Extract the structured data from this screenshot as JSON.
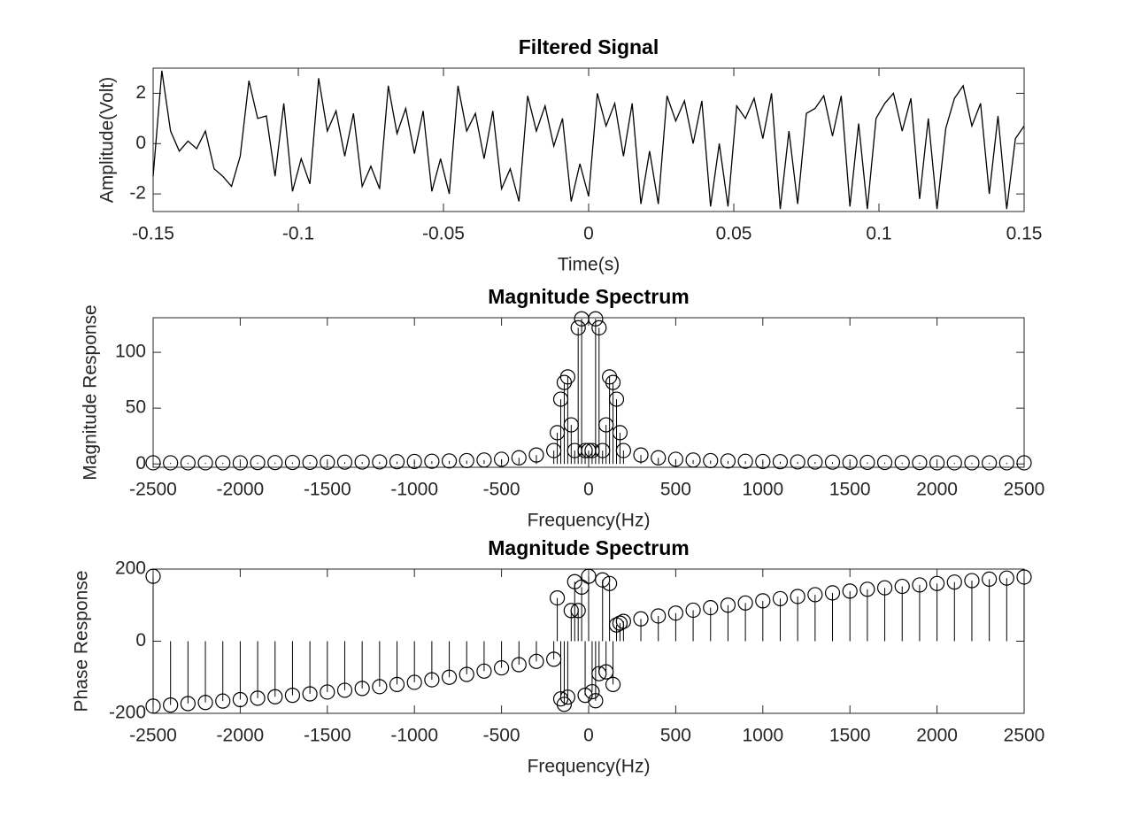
{
  "chart_data": [
    {
      "type": "line",
      "title": "Filtered Signal",
      "x_label": "Time(s)",
      "y_label": "Amplitude(Volt)",
      "color": "#000000",
      "x": [
        -0.15,
        -0.147,
        -0.144,
        -0.141,
        -0.138,
        -0.135,
        -0.132,
        -0.129,
        -0.126,
        -0.123,
        -0.12,
        -0.117,
        -0.114,
        -0.111,
        -0.108,
        -0.105,
        -0.102,
        -0.099,
        -0.096,
        -0.093,
        -0.09,
        -0.087,
        -0.084,
        -0.081,
        -0.078,
        -0.075,
        -0.072,
        -0.069,
        -0.066,
        -0.063,
        -0.06,
        -0.057,
        -0.054,
        -0.051,
        -0.048,
        -0.045,
        -0.042,
        -0.039,
        -0.036,
        -0.033,
        -0.03,
        -0.027,
        -0.024,
        -0.021,
        -0.018,
        -0.015,
        -0.012,
        -0.009,
        -0.006,
        -0.003,
        0,
        0.003,
        0.006,
        0.009,
        0.012,
        0.015,
        0.018,
        0.021,
        0.024,
        0.027,
        0.03,
        0.033,
        0.036,
        0.039,
        0.042,
        0.045,
        0.048,
        0.051,
        0.054,
        0.057,
        0.06,
        0.063,
        0.066,
        0.069,
        0.072,
        0.075,
        0.078,
        0.081,
        0.084,
        0.087,
        0.09,
        0.093,
        0.096,
        0.099,
        0.102,
        0.105,
        0.108,
        0.111,
        0.114,
        0.117,
        0.12,
        0.123,
        0.126,
        0.129,
        0.132,
        0.135,
        0.138,
        0.141,
        0.144,
        0.147,
        0.15
      ],
      "values": [
        -1.3,
        2.9,
        0.5,
        -0.3,
        0.1,
        -0.2,
        0.5,
        -1.0,
        -1.3,
        -1.7,
        -0.5,
        2.5,
        1.0,
        1.1,
        -1.3,
        1.6,
        -1.9,
        -0.6,
        -1.6,
        2.6,
        0.5,
        1.3,
        -0.5,
        1.2,
        -1.7,
        -0.9,
        -1.8,
        2.3,
        0.4,
        1.4,
        -0.4,
        1.3,
        -1.9,
        -0.6,
        -2.0,
        2.3,
        0.5,
        1.2,
        -0.6,
        1.3,
        -1.8,
        -1.0,
        -2.3,
        1.9,
        0.5,
        1.5,
        -0.1,
        1.0,
        -2.3,
        -0.8,
        -2.1,
        2.0,
        0.7,
        1.6,
        -0.5,
        1.6,
        -2.4,
        -0.3,
        -2.4,
        1.9,
        0.9,
        1.7,
        0.0,
        1.7,
        -2.5,
        0.0,
        -2.5,
        1.5,
        1.0,
        1.8,
        0.2,
        2.0,
        -2.6,
        0.5,
        -2.4,
        1.2,
        1.4,
        1.9,
        0.3,
        1.9,
        -2.5,
        0.8,
        -2.6,
        1.0,
        1.6,
        2.0,
        0.5,
        1.8,
        -2.2,
        1.0,
        -2.6,
        0.6,
        1.8,
        2.3,
        0.7,
        1.6,
        -2.0,
        1.1,
        -2.6,
        0.2,
        0.7
      ],
      "xlim": [
        -0.15,
        0.15
      ],
      "xticks": [
        -0.15,
        -0.1,
        -0.05,
        0,
        0.05,
        0.1,
        0.15
      ],
      "ylim": [
        -2.7,
        3
      ],
      "yticks": [
        -2,
        0,
        2
      ]
    },
    {
      "type": "stem",
      "title": "Magnitude Spectrum",
      "x_label": "Frequency(Hz)",
      "y_label": "Magnitude Response",
      "color": "#000000",
      "x": [
        -2500,
        -2400,
        -2300,
        -2200,
        -2100,
        -2000,
        -1900,
        -1800,
        -1700,
        -1600,
        -1500,
        -1400,
        -1300,
        -1200,
        -1100,
        -1000,
        -900,
        -800,
        -700,
        -600,
        -500,
        -400,
        -300,
        -200,
        -180,
        -160,
        -140,
        -120,
        -100,
        -80,
        -60,
        -40,
        -20,
        0,
        20,
        40,
        60,
        80,
        100,
        120,
        140,
        160,
        180,
        200,
        300,
        400,
        500,
        600,
        700,
        800,
        900,
        1000,
        1100,
        1200,
        1300,
        1400,
        1500,
        1600,
        1700,
        1800,
        1900,
        2000,
        2100,
        2200,
        2300,
        2400,
        2500
      ],
      "values": [
        1,
        1,
        1,
        1,
        1,
        1,
        1.2,
        1.2,
        1.3,
        1.4,
        1.5,
        1.6,
        1.7,
        1.8,
        2,
        2.2,
        2.4,
        2.7,
        3,
        3.5,
        4.2,
        5.5,
        8,
        12,
        28,
        58,
        73,
        78,
        35,
        12,
        122,
        130,
        12,
        12,
        12,
        130,
        122,
        12,
        35,
        78,
        73,
        58,
        28,
        12,
        8,
        5.5,
        4.2,
        3.5,
        3,
        2.7,
        2.4,
        2.2,
        2,
        1.8,
        1.7,
        1.6,
        1.5,
        1.4,
        1.3,
        1.2,
        1.2,
        1,
        1,
        1,
        1,
        1,
        1
      ],
      "xlim": [
        -2500,
        2500
      ],
      "xticks": [
        -2500,
        -2000,
        -1500,
        -1000,
        -500,
        0,
        500,
        1000,
        1500,
        2000,
        2500
      ],
      "ylim": [
        -3,
        131
      ],
      "yticks": [
        0,
        50,
        100
      ]
    },
    {
      "type": "stem",
      "title": "Magnitude Spectrum",
      "x_label": "Frequency(Hz)",
      "y_label": "Phase Response",
      "color": "#000000",
      "x": [
        -2500,
        -2500,
        -2400,
        -2300,
        -2200,
        -2100,
        -2000,
        -1900,
        -1800,
        -1700,
        -1600,
        -1500,
        -1400,
        -1300,
        -1200,
        -1100,
        -1000,
        -900,
        -800,
        -700,
        -600,
        -500,
        -400,
        -300,
        -200,
        -180,
        -160,
        -140,
        -120,
        -100,
        -80,
        -60,
        -40,
        -20,
        0,
        20,
        40,
        60,
        80,
        100,
        120,
        140,
        160,
        180,
        200,
        300,
        400,
        500,
        600,
        700,
        800,
        900,
        1000,
        1100,
        1200,
        1300,
        1400,
        1500,
        1600,
        1700,
        1800,
        1900,
        2000,
        2100,
        2200,
        2300,
        2400,
        2500
      ],
      "values": [
        180,
        -180,
        -177,
        -173,
        -170,
        -166,
        -162,
        -158,
        -154,
        -150,
        -146,
        -141,
        -136,
        -131,
        -126,
        -120,
        -114,
        -107,
        -100,
        -92,
        -83,
        -74,
        -65,
        -56,
        -50,
        120,
        -160,
        -175,
        -155,
        85,
        165,
        85,
        150,
        -150,
        180,
        -140,
        -165,
        -90,
        170,
        -85,
        160,
        -120,
        45,
        50,
        55,
        62,
        70,
        78,
        86,
        93,
        100,
        106,
        112,
        118,
        124,
        129,
        134,
        139,
        144,
        148,
        152,
        156,
        160,
        164,
        168,
        172,
        175,
        178
      ],
      "xlim": [
        -2500,
        2500
      ],
      "xticks": [
        -2500,
        -2000,
        -1500,
        -1000,
        -500,
        0,
        500,
        1000,
        1500,
        2000,
        2500
      ],
      "ylim": [
        -200,
        200
      ],
      "yticks": [
        -200,
        0,
        200
      ]
    }
  ]
}
